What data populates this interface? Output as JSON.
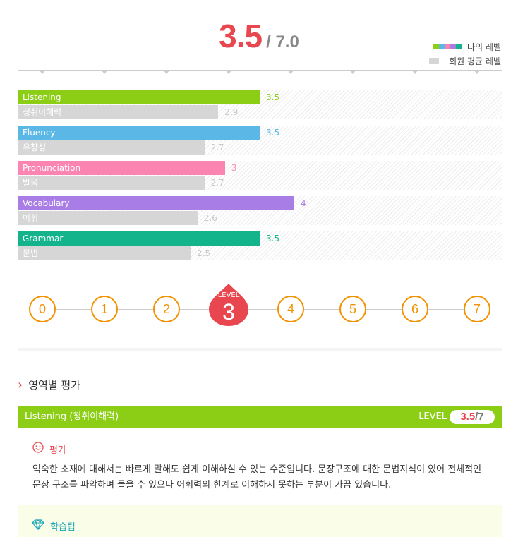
{
  "score": {
    "value": "3.5",
    "max": "/ 7.0"
  },
  "legend": {
    "mine": "나의 레벨",
    "avg": "회원 평균 레벨"
  },
  "colors": {
    "accent": "#e8474f",
    "orange": "#f39200",
    "avg_bar": "#d6d6d6"
  },
  "chart_data": {
    "type": "bar",
    "orientation": "horizontal",
    "xlim": [
      0,
      7
    ],
    "categories": [
      "Listening",
      "Fluency",
      "Pronunciation",
      "Vocabulary",
      "Grammar"
    ],
    "categories_ko": [
      "청취이해력",
      "유창성",
      "발음",
      "어휘",
      "문법"
    ],
    "series": [
      {
        "name": "나의 레벨",
        "values": [
          3.5,
          3.5,
          3,
          4,
          3.5
        ],
        "colors": [
          "#8ccd15",
          "#5bb8e6",
          "#fc84b0",
          "#a87ee6",
          "#13b48c"
        ]
      },
      {
        "name": "회원 평균 레벨",
        "values": [
          2.9,
          2.7,
          2.7,
          2.6,
          2.5
        ],
        "color": "#d6d6d6"
      }
    ],
    "value_labels_mine": [
      "3.5",
      "3.5",
      "3",
      "4",
      "3.5"
    ],
    "value_labels_avg": [
      "2.9",
      "2.7",
      "2.7",
      "2.6",
      "2.5"
    ]
  },
  "levels": {
    "scale": [
      "0",
      "1",
      "2",
      "3",
      "4",
      "5",
      "6",
      "7"
    ],
    "current": 3,
    "current_label": "LEVEL"
  },
  "section": {
    "title": "영역별 평가"
  },
  "panel": {
    "title": "Listening (청취이해력)",
    "level_label": "LEVEL",
    "score": "3.5",
    "out_of": "/7",
    "eval_title": "평가",
    "eval_text": "익숙한 소재에 대해서는 빠르게 말해도 쉽게 이해하실 수 있는 수준입니다. 문장구조에 대한 문법지식이 있어 전체적인 문장 구조를 파악하며 들을 수 있으나 어휘력의 한계로 이해하지 못하는 부분이 가끔 있습니다.",
    "tip_title": "학습팁"
  }
}
